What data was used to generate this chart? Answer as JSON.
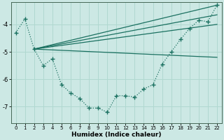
{
  "xlabel": "Humidex (Indice chaleur)",
  "ylabel": "",
  "background_color": "#cce8e4",
  "grid_color": "#b0d8d0",
  "line_color": "#1a7060",
  "xlim": [
    -0.5,
    22.5
  ],
  "ylim": [
    -7.6,
    -3.2
  ],
  "yticks": [
    -7,
    -6,
    -5,
    -4
  ],
  "xticks": [
    0,
    1,
    2,
    3,
    4,
    5,
    6,
    7,
    8,
    9,
    10,
    11,
    12,
    13,
    14,
    15,
    16,
    17,
    18,
    19,
    20,
    21,
    22
  ],
  "curve_x": [
    0,
    1,
    2,
    3,
    4,
    5,
    6,
    7,
    8,
    9,
    10,
    11,
    12,
    13,
    14,
    15,
    16,
    17,
    18,
    19,
    20,
    21,
    22
  ],
  "curve_y": [
    -4.3,
    -3.8,
    -4.9,
    -5.5,
    -5.25,
    -6.2,
    -6.5,
    -6.7,
    -7.05,
    -7.05,
    -7.2,
    -6.6,
    -6.6,
    -6.65,
    -6.35,
    -6.2,
    -5.45,
    -5.0,
    -4.55,
    -4.15,
    -3.85,
    -3.9,
    -3.3
  ],
  "fan_lines": [
    {
      "x": [
        2,
        22
      ],
      "y": [
        -4.9,
        -3.3
      ]
    },
    {
      "x": [
        2,
        22
      ],
      "y": [
        -4.9,
        -3.65
      ]
    },
    {
      "x": [
        2,
        22
      ],
      "y": [
        -4.9,
        -4.0
      ]
    },
    {
      "x": [
        2,
        22
      ],
      "y": [
        -4.9,
        -5.2
      ]
    }
  ]
}
